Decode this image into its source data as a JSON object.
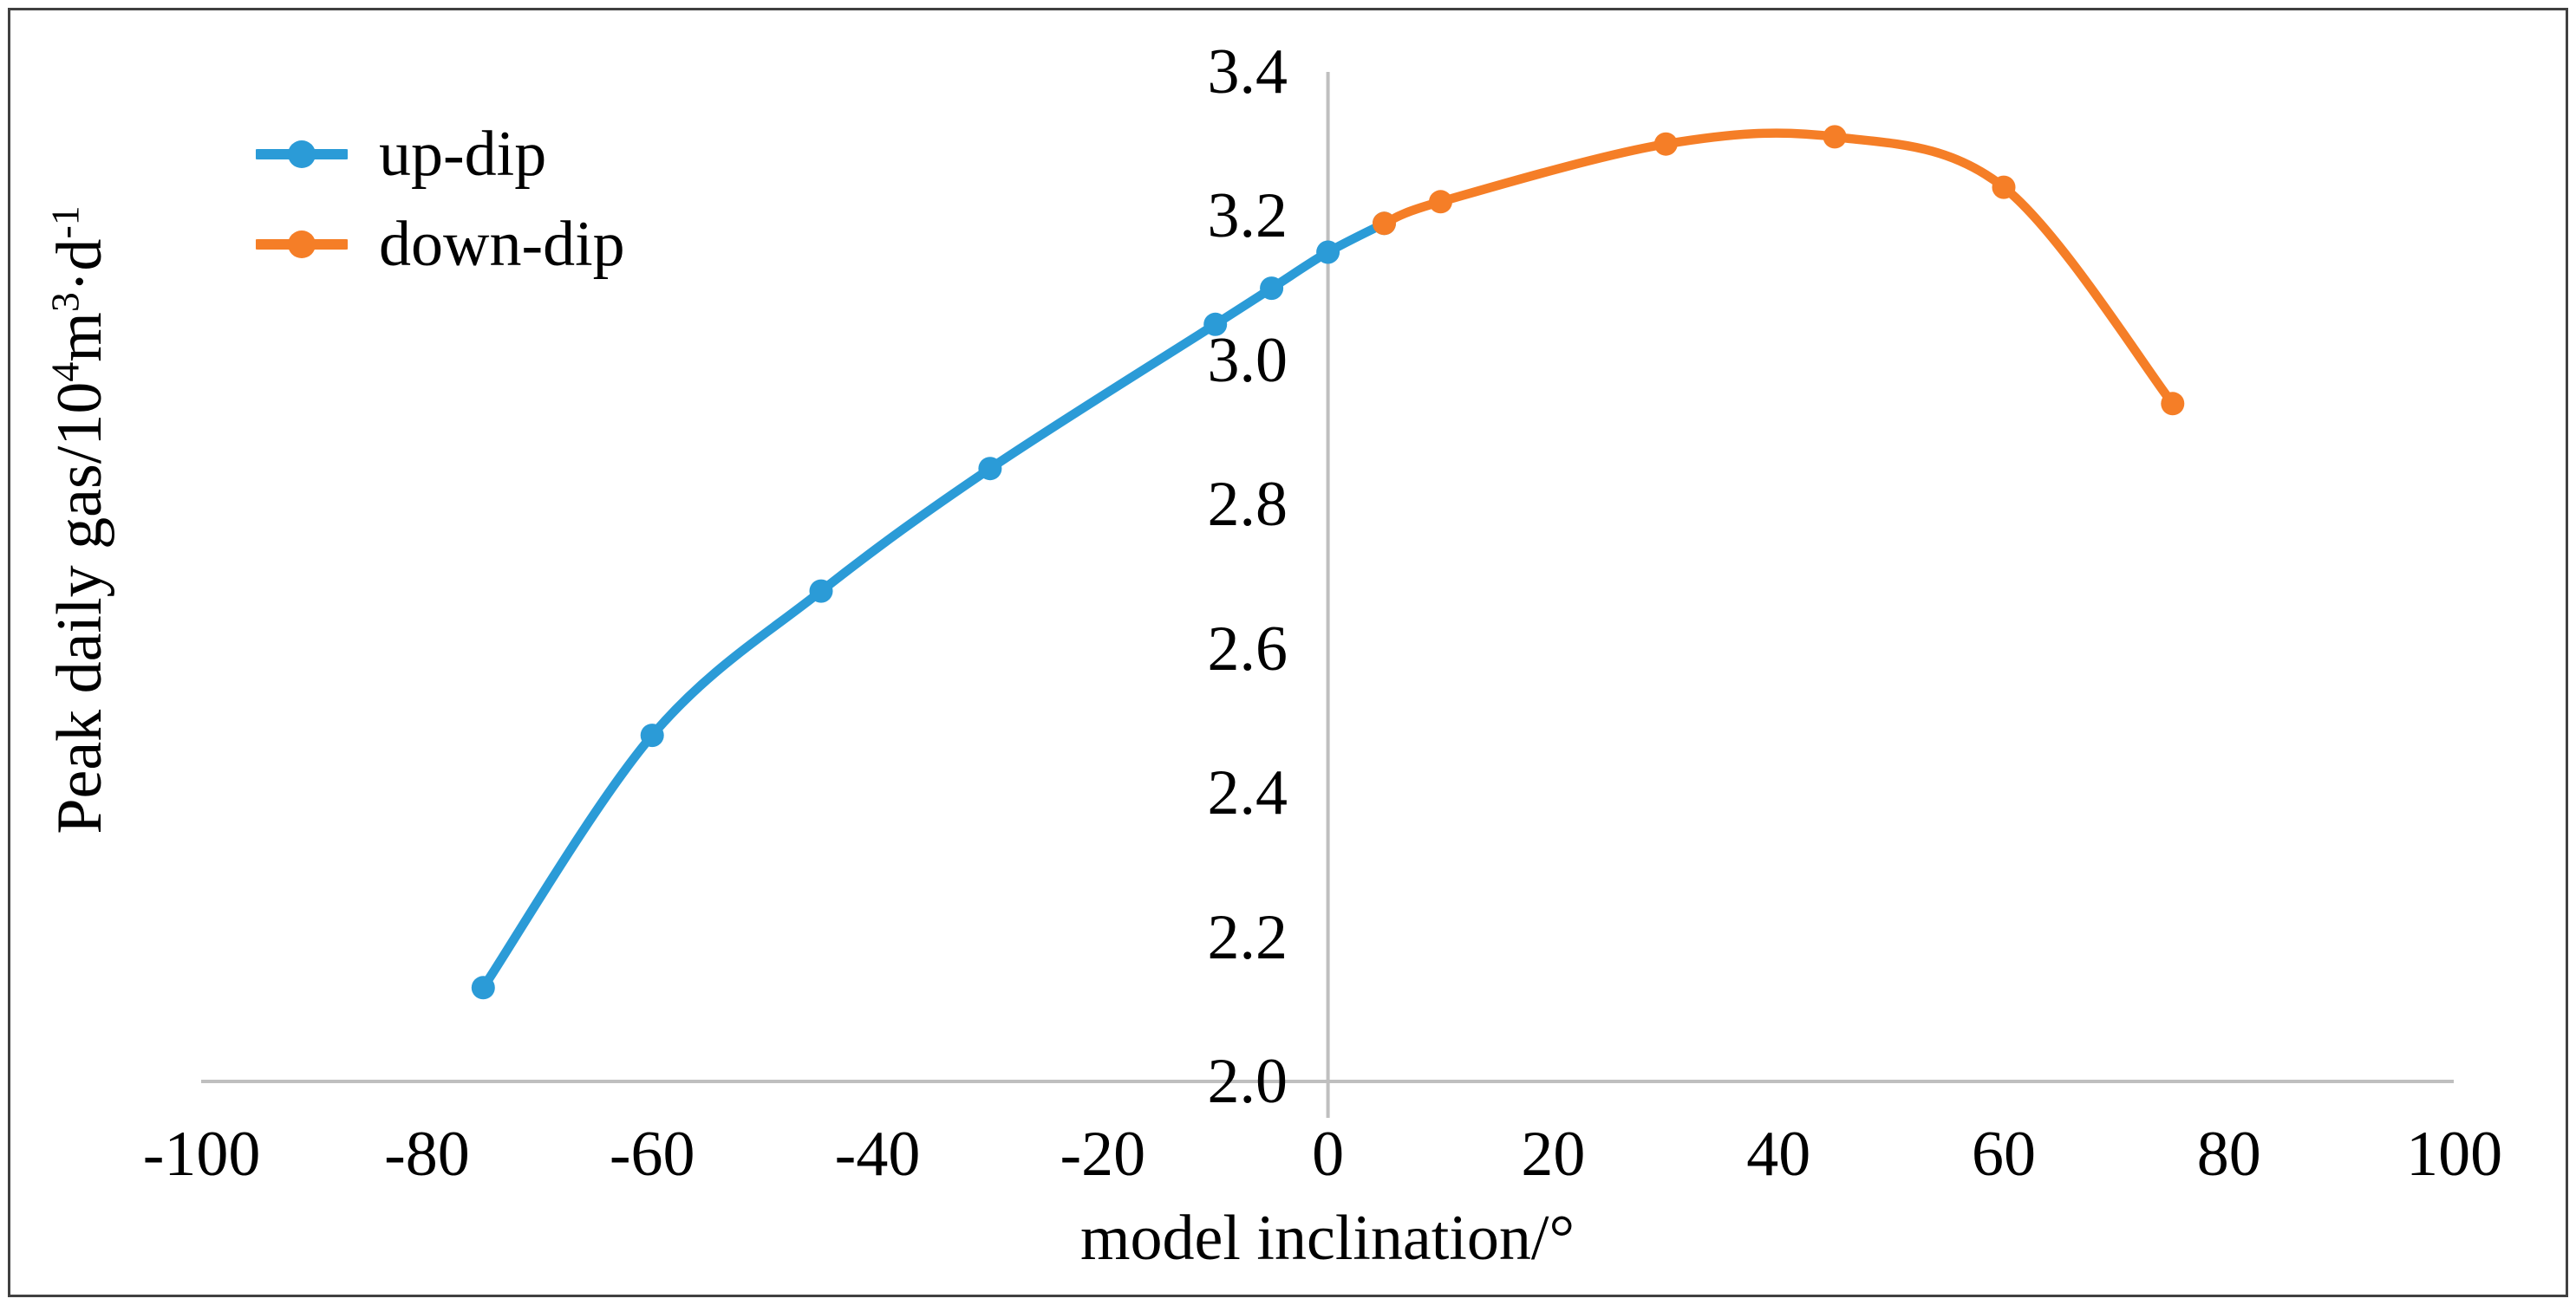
{
  "figure": {
    "background": "#ffffff",
    "border_color": "#404040"
  },
  "chart_data": {
    "type": "line",
    "title": "",
    "xlabel": "model inclination/°",
    "ylabel": "Peak daily gas/10⁴m³·d⁻¹",
    "ylabel_rich": [
      {
        "text": "Peak daily gas/10",
        "sup": false
      },
      {
        "text": "4",
        "sup": true
      },
      {
        "text": "m",
        "sup": false
      },
      {
        "text": "3",
        "sup": true
      },
      {
        "text": "·d",
        "sup": false
      },
      {
        "text": "-1",
        "sup": true
      }
    ],
    "xlim": [
      -100,
      100
    ],
    "ylim": [
      2.0,
      3.4
    ],
    "x_ticks": [
      -100,
      -80,
      -60,
      -40,
      -20,
      0,
      20,
      40,
      60,
      80,
      100
    ],
    "y_ticks": [
      "2.0",
      "2.2",
      "2.4",
      "2.6",
      "2.8",
      "3.0",
      "3.2",
      "3.4"
    ],
    "grid": false,
    "axis_color": "#BFBFBF",
    "legend_position": "top-left-inside",
    "series": [
      {
        "name": "up-dip",
        "color": "#2B9BD7",
        "marker": "circle",
        "points": [
          [
            -75,
            2.13
          ],
          [
            -60,
            2.48
          ],
          [
            -45,
            2.68
          ],
          [
            -30,
            2.85
          ],
          [
            -10,
            3.05
          ],
          [
            -5,
            3.1
          ],
          [
            0,
            3.15
          ],
          [
            5,
            3.19
          ]
        ]
      },
      {
        "name": "down-dip",
        "color": "#F57E27",
        "marker": "circle",
        "points": [
          [
            5,
            3.19
          ],
          [
            10,
            3.22
          ],
          [
            30,
            3.3
          ],
          [
            45,
            3.31
          ],
          [
            60,
            3.24
          ],
          [
            75,
            2.94
          ]
        ]
      }
    ]
  }
}
